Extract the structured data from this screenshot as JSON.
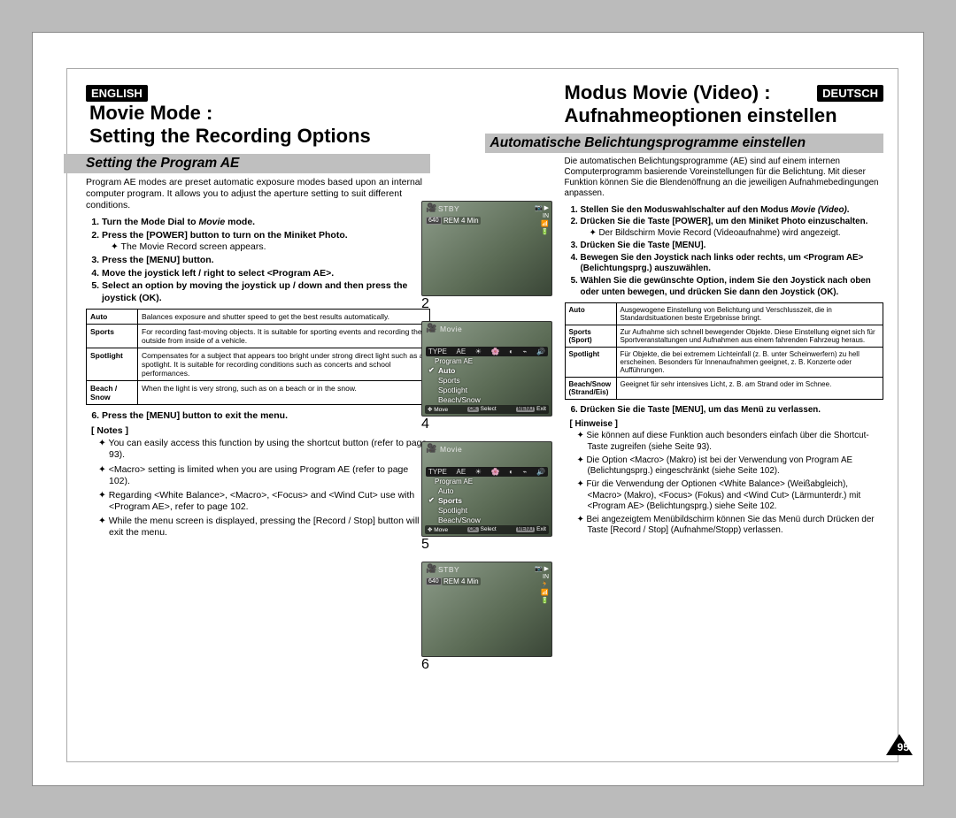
{
  "page_number": "95",
  "en": {
    "lang_badge": "ENGLISH",
    "title_line1": "Movie Mode :",
    "title_line2": "Setting the Recording Options",
    "subtitle": "Setting the Program AE",
    "intro": "Program AE modes are preset automatic exposure modes based upon an internal computer program. It allows you to adjust the aperture setting to suit different conditions.",
    "step1_a": "Turn the Mode Dial to ",
    "step1_b": "Movie",
    "step1_c": " mode.",
    "step2": "Press the [POWER] button to turn on the Miniket Photo.",
    "step2_sub": "The Movie Record screen appears.",
    "step3": "Press the [MENU] button.",
    "step4": "Move the joystick left / right to select <Program AE>.",
    "step5": "Select an option by moving the joystick up / down and then press the joystick (OK).",
    "step6": "Press the [MENU] button to exit the menu.",
    "table": [
      [
        "Auto",
        "Balances exposure and shutter speed to get the best results automatically."
      ],
      [
        "Sports",
        "For recording fast-moving objects. It is suitable for sporting events and recording the outside from inside of a vehicle."
      ],
      [
        "Spotlight",
        "Compensates for a subject that appears too bright under strong direct light such as a spotlight. It is suitable for recording conditions such as concerts and school performances."
      ],
      [
        "Beach / Snow",
        "When the light is very strong, such as on a beach or in the snow."
      ]
    ],
    "notes_hdr": "[ Notes ]",
    "notes": [
      "You can easily access this function by using the shortcut button (refer to page 93).",
      "<Macro> setting is limited when you are using Program AE (refer to page 102).",
      "Regarding <White Balance>, <Macro>, <Focus> and <Wind Cut> use with <Program AE>, refer to page 102.",
      "While the menu screen is displayed, pressing the [Record / Stop] button will exit the menu."
    ]
  },
  "de": {
    "lang_badge": "DEUTSCH",
    "title_line1": "Modus Movie (Video) :",
    "title_line2": "Aufnahmeoptionen einstellen",
    "subtitle": "Automatische Belichtungsprogramme einstellen",
    "intro": "Die automatischen Belichtungsprogramme (AE) sind auf einem internen Computerprogramm basierende Voreinstellungen für die  Belichtung. Mit dieser Funktion können Sie die Blendenöffnung an die jeweiligen Aufnahmebedingungen anpassen.",
    "step1_a": "Stellen Sie den Moduswahlschalter auf den Modus ",
    "step1_b": "Movie (Video)",
    "step1_c": ".",
    "step2": "Drücken Sie die Taste [POWER], um den Miniket Photo einzuschalten.",
    "step2_sub": "Der Bildschirm Movie Record (Videoaufnahme) wird angezeigt.",
    "step3": "Drücken Sie die Taste [MENU].",
    "step4": "Bewegen Sie den Joystick nach links oder rechts, um <Program AE> (Belichtungsprg.) auszuwählen.",
    "step5": "Wählen Sie die gewünschte Option, indem Sie den Joystick nach oben oder unten bewegen, und drücken Sie dann den Joystick (OK).",
    "step6": "Drücken Sie die Taste [MENU], um das Menü zu verlassen.",
    "table": [
      [
        "Auto",
        "Ausgewogene Einstellung von Belichtung und Verschlusszeit, die in Standardsituationen beste Ergebnisse bringt."
      ],
      [
        "Sports (Sport)",
        "Zur Aufnahme sich schnell bewegender Objekte. Diese Einstellung eignet sich für Sportveranstaltungen und Aufnahmen aus einem fahrenden Fahrzeug heraus."
      ],
      [
        "Spotlight",
        "Für Objekte, die bei extremem Lichteinfall (z. B. unter Scheinwerfern) zu hell erscheinen. Besonders für Innenaufnahmen geeignet, z. B. Konzerte oder Aufführungen."
      ],
      [
        "Beach/Snow (Strand/Eis)",
        "Geeignet für sehr intensives Licht, z. B. am Strand oder im Schnee."
      ]
    ],
    "notes_hdr": "[ Hinweise ]",
    "notes": [
      "Sie können auf diese Funktion auch besonders einfach über die Shortcut-Taste zugreifen (siehe Seite 93).",
      "Die Option <Macro> (Makro) ist bei der Verwendung von Program AE (Belichtungsprg.) eingeschränkt (siehe Seite 102).",
      "Für die Verwendung der Optionen <White Balance> (Weißabgleich), <Macro> (Makro), <Focus> (Fokus) and <Wind Cut> (Lärmunterdr.) mit <Program AE> (Belichtungsprg.) siehe Seite 102.",
      "Bei angezeigtem Menübildschirm können Sie das Menü durch Drücken der Taste [Record / Stop] (Aufnahme/Stopp) verlassen."
    ]
  },
  "figs": {
    "movie_label": "Movie",
    "stby": "STBY",
    "rem": "REM 4 Min",
    "res": "640",
    "menu_title": "Program AE",
    "menu_items": [
      "Auto",
      "Sports",
      "Spotlight",
      "Beach/Snow"
    ],
    "bottom_move": "Move",
    "bottom_ok": "OK",
    "bottom_select": "Select",
    "bottom_menu": "MENU",
    "bottom_exit": "Exit",
    "icon_ae": "AE",
    "icon_type": "TYPE",
    "f2_num": "2",
    "f4_num": "4",
    "f5_num": "5",
    "f6_num": "6",
    "sel_auto_idx": 0,
    "sel_sports_idx": 1
  }
}
